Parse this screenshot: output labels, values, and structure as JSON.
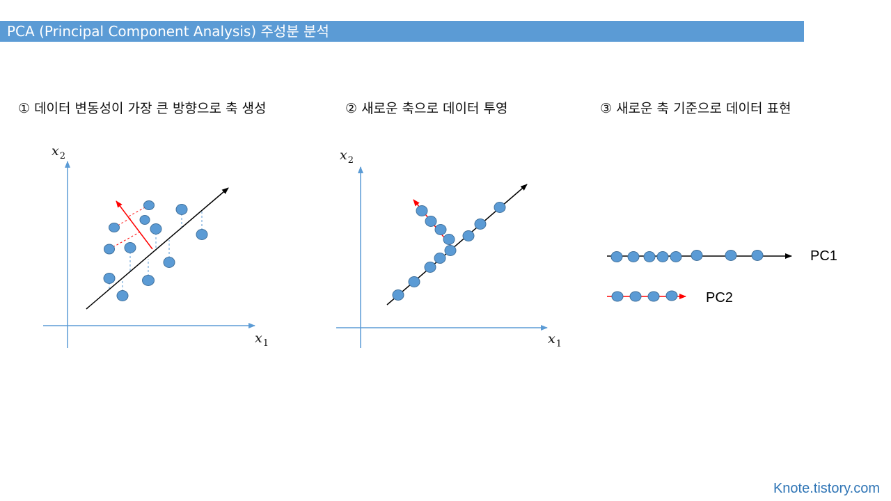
{
  "header": {
    "title": "PCA (Principal Component Analysis) 주성분 분석"
  },
  "steps": [
    {
      "label": "① 데이터 변동성이 가장 큰 방향으로 축 생성"
    },
    {
      "label": "② 새로운 축으로 데이터 투영"
    },
    {
      "label": "③ 새로운 축 기준으로 데이터 표현"
    }
  ],
  "panels": {
    "panel1": {
      "x_var": "x",
      "x_sub": "1",
      "y_var": "x",
      "y_sub": "2"
    },
    "panel2": {
      "x_var": "x",
      "x_sub": "1",
      "y_var": "x",
      "y_sub": "2"
    },
    "panel3": {
      "pc1_label": "PC1",
      "pc2_label": "PC2"
    }
  },
  "colors": {
    "header_bg": "#5b9bd5",
    "axis": "#5b9bd5",
    "point_fill": "#5b9bd5",
    "point_stroke": "#41719c",
    "principal_axis": "#000000",
    "secondary_axis": "#ff0000",
    "footer": "#2e74b5"
  },
  "footer": {
    "text": "Knote.tistory.com"
  }
}
